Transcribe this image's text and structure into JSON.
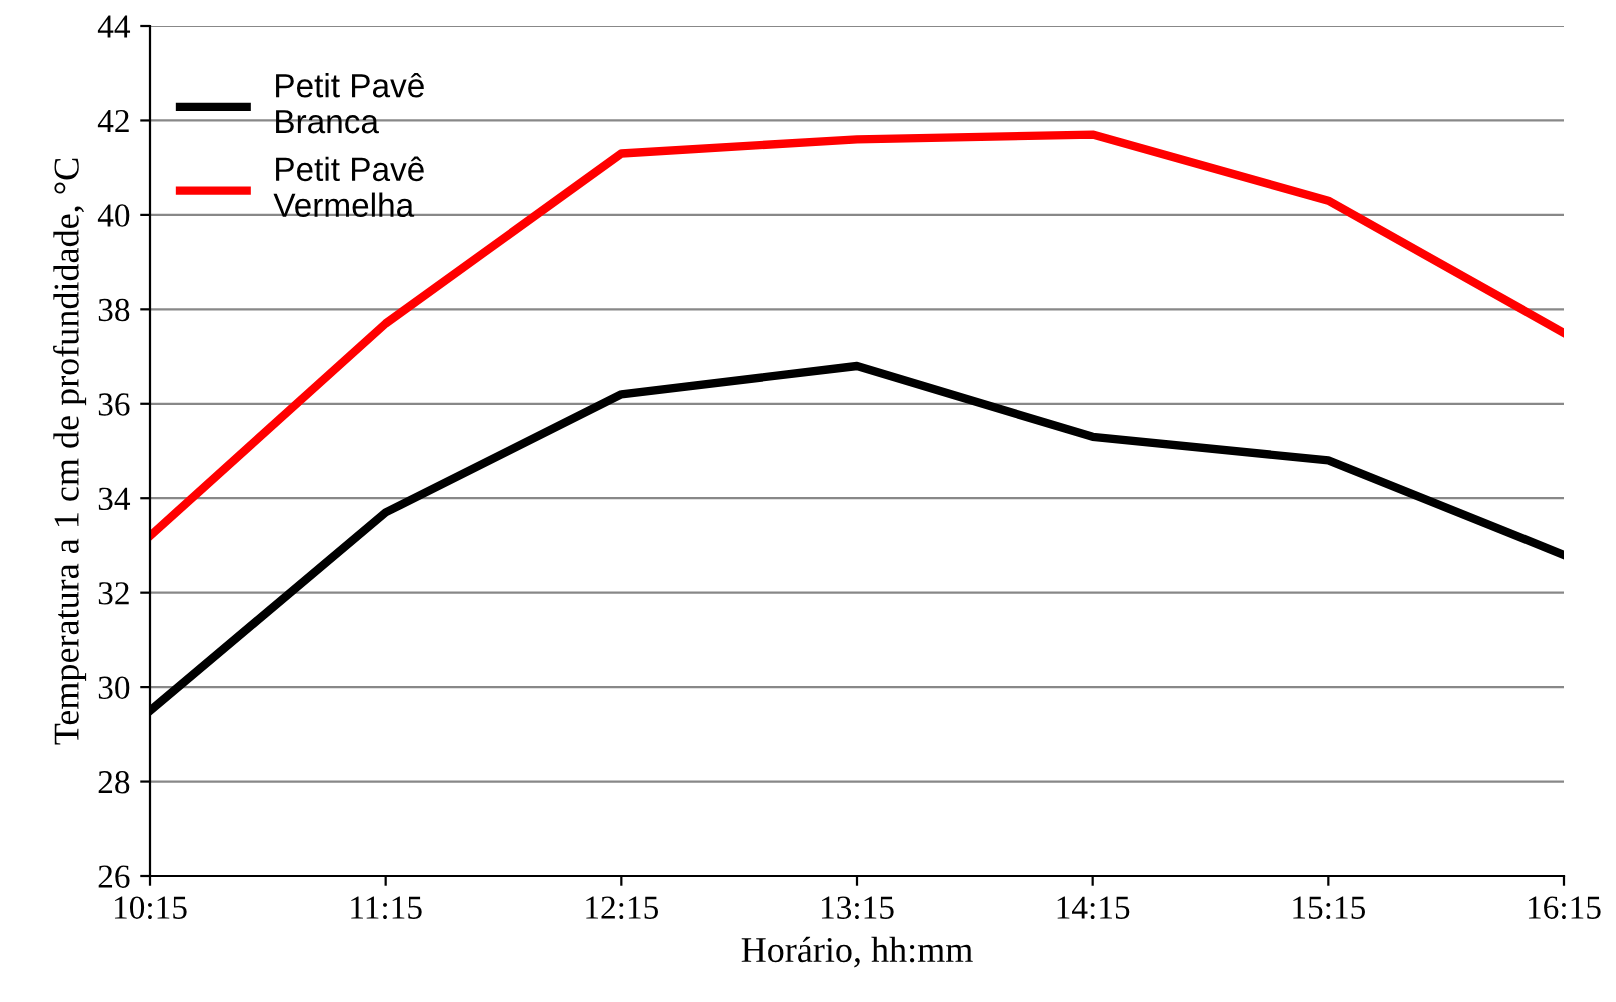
{
  "chart_data": {
    "type": "line",
    "xlabel": "Horário, hh:mm",
    "ylabel": "Temperatura a 1 cm de profundidade, °C",
    "categories": [
      "10:15",
      "11:15",
      "12:15",
      "13:15",
      "14:15",
      "15:15",
      "16:15"
    ],
    "series": [
      {
        "name": "Petit Pavê\nBranca",
        "color": "#000000",
        "values": [
          29.5,
          33.7,
          36.2,
          36.8,
          35.3,
          34.8,
          32.8
        ]
      },
      {
        "name": "Petit Pavê\nVermelha",
        "color": "#ff0000",
        "values": [
          33.2,
          37.7,
          41.3,
          41.6,
          41.7,
          40.3,
          37.5
        ]
      }
    ],
    "ylim": [
      26,
      44
    ],
    "yticks": [
      26,
      28,
      30,
      32,
      34,
      36,
      38,
      40,
      42,
      44
    ],
    "grid": "y",
    "legend": "top left",
    "marker": "none",
    "line_style": "solid"
  }
}
